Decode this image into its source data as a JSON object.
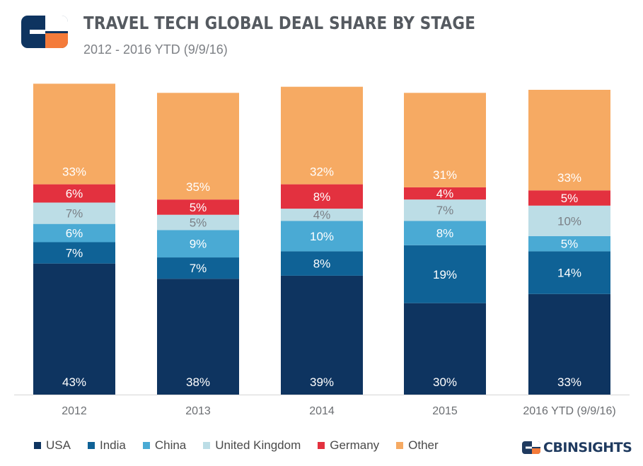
{
  "header": {
    "title": "TRAVEL TECH GLOBAL DEAL SHARE BY STAGE",
    "subtitle": "2012 - 2016 YTD (9/9/16)"
  },
  "brand": {
    "text": "CBINSIGHTS"
  },
  "colors": {
    "USA": "#0e3460",
    "India": "#0f6296",
    "China": "#4aaad4",
    "United Kingdom": "#bcdde6",
    "Germany": "#e3313f",
    "Other": "#f6aa63"
  },
  "chart_data": {
    "type": "bar",
    "stacked": true,
    "percent": true,
    "categories": [
      "2012",
      "2013",
      "2014",
      "2015",
      "2016 YTD (9/9/16)"
    ],
    "series": [
      {
        "name": "USA",
        "values": [
          43,
          38,
          39,
          30,
          33
        ],
        "labels": [
          "43%",
          "38%",
          "39%",
          "30%",
          "33%"
        ]
      },
      {
        "name": "India",
        "values": [
          7,
          7,
          8,
          19,
          14
        ],
        "labels": [
          "7%",
          "7%",
          "8%",
          "19%",
          "14%"
        ]
      },
      {
        "name": "China",
        "values": [
          6,
          9,
          10,
          8,
          5
        ],
        "labels": [
          "6%",
          "9%",
          "10%",
          "8%",
          "5%"
        ]
      },
      {
        "name": "United Kingdom",
        "values": [
          7,
          5,
          4,
          7,
          10
        ],
        "labels": [
          "7%",
          "5%",
          "4%",
          "7%",
          "10%"
        ]
      },
      {
        "name": "Germany",
        "values": [
          6,
          5,
          8,
          4,
          5
        ],
        "labels": [
          "6%",
          "5%",
          "8%",
          "4%",
          "5%"
        ]
      },
      {
        "name": "Other",
        "values": [
          33,
          35,
          32,
          31,
          33
        ],
        "labels": [
          "33%",
          "35%",
          "32%",
          "31%",
          "33%"
        ]
      }
    ],
    "ylim": [
      0,
      100
    ],
    "legend_position": "bottom-left",
    "grid": false
  }
}
